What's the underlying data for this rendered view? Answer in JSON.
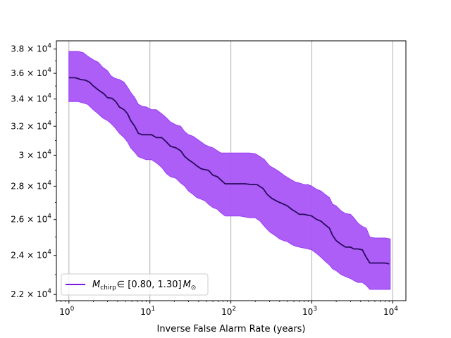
{
  "chart_data": {
    "type": "line",
    "title": "",
    "xlabel": "Inverse False Alarm Rate (years)",
    "ylabel": "",
    "xscale": "log",
    "yscale": "log",
    "xlim": [
      0.7,
      14500
    ],
    "ylim": [
      21700,
      38700
    ],
    "grid": "vertical-major",
    "legend_position": "lower-left",
    "colors": {
      "line": "#2a0a5e",
      "band": "#a855f7",
      "band_edge": "#9b3ff5",
      "legend_line": "#7a1ae6",
      "grid": "#b0b0b0"
    },
    "x_ticks": [
      {
        "value": 1,
        "base": "10",
        "exp": "0"
      },
      {
        "value": 10,
        "base": "10",
        "exp": "1"
      },
      {
        "value": 100,
        "base": "10",
        "exp": "2"
      },
      {
        "value": 1000,
        "base": "10",
        "exp": "3"
      },
      {
        "value": 10000,
        "base": "10",
        "exp": "4"
      }
    ],
    "y_ticks": [
      {
        "value": 22000,
        "mant": "2.2 × 10",
        "exp": "4"
      },
      {
        "value": 24000,
        "mant": "2.4 × 10",
        "exp": "4"
      },
      {
        "value": 26000,
        "mant": "2.6 × 10",
        "exp": "4"
      },
      {
        "value": 28000,
        "mant": "2.8 × 10",
        "exp": "4"
      },
      {
        "value": 30000,
        "mant": "3 × 10",
        "exp": "4"
      },
      {
        "value": 32000,
        "mant": "3.2 × 10",
        "exp": "4"
      },
      {
        "value": 34000,
        "mant": "3.4 × 10",
        "exp": "4"
      },
      {
        "value": 36000,
        "mant": "3.6 × 10",
        "exp": "4"
      },
      {
        "value": 38000,
        "mant": "3.8 × 10",
        "exp": "4"
      }
    ],
    "series": [
      {
        "name": "M_chirp ∈ [0.80, 1.30] M_⊙",
        "legend": {
          "main": "M",
          "sub": "chirp",
          "range": "∈ [0.80, 1.30]",
          "mass": "M",
          "mass_sub": "⊙"
        },
        "points": [
          [
            1.0,
            35650
          ],
          [
            1.2,
            35650
          ],
          [
            1.4,
            35500
          ],
          [
            1.6,
            35450
          ],
          [
            1.8,
            35300
          ],
          [
            2.0,
            35000
          ],
          [
            2.3,
            34700
          ],
          [
            2.7,
            34400
          ],
          [
            3.0,
            34100
          ],
          [
            3.4,
            34050
          ],
          [
            3.8,
            33800
          ],
          [
            4.2,
            33400
          ],
          [
            4.8,
            33200
          ],
          [
            5.3,
            32900
          ],
          [
            5.8,
            32400
          ],
          [
            6.5,
            32000
          ],
          [
            7.2,
            31500
          ],
          [
            8.0,
            31400
          ],
          [
            9.0,
            31400
          ],
          [
            10.5,
            31400
          ],
          [
            12,
            31200
          ],
          [
            14,
            31200
          ],
          [
            16,
            30900
          ],
          [
            18,
            30600
          ],
          [
            21,
            30500
          ],
          [
            24,
            30300
          ],
          [
            27,
            29900
          ],
          [
            30,
            29700
          ],
          [
            34,
            29500
          ],
          [
            38,
            29300
          ],
          [
            43,
            29100
          ],
          [
            48,
            29050
          ],
          [
            53,
            29000
          ],
          [
            60,
            28700
          ],
          [
            68,
            28600
          ],
          [
            75,
            28400
          ],
          [
            85,
            28150
          ],
          [
            100,
            28150
          ],
          [
            120,
            28150
          ],
          [
            150,
            28150
          ],
          [
            180,
            28100
          ],
          [
            210,
            28100
          ],
          [
            250,
            27850
          ],
          [
            280,
            27500
          ],
          [
            320,
            27250
          ],
          [
            380,
            27050
          ],
          [
            450,
            26900
          ],
          [
            500,
            26800
          ],
          [
            560,
            26600
          ],
          [
            630,
            26450
          ],
          [
            700,
            26300
          ],
          [
            800,
            26300
          ],
          [
            900,
            26250
          ],
          [
            1000,
            26200
          ],
          [
            1150,
            26000
          ],
          [
            1300,
            25900
          ],
          [
            1450,
            25700
          ],
          [
            1650,
            25500
          ],
          [
            1800,
            25100
          ],
          [
            2000,
            24800
          ],
          [
            2300,
            24600
          ],
          [
            2600,
            24450
          ],
          [
            3000,
            24450
          ],
          [
            3300,
            24350
          ],
          [
            3700,
            24350
          ],
          [
            4200,
            24300
          ],
          [
            4700,
            23900
          ],
          [
            5200,
            23600
          ],
          [
            6000,
            23600
          ],
          [
            7000,
            23600
          ],
          [
            8000,
            23600
          ],
          [
            9000,
            23550
          ]
        ],
        "band_upper": [
          [
            1.0,
            37800
          ],
          [
            1.3,
            37800
          ],
          [
            1.5,
            37700
          ],
          [
            1.7,
            37400
          ],
          [
            2.0,
            37100
          ],
          [
            2.3,
            36900
          ],
          [
            2.6,
            36500
          ],
          [
            3.0,
            36200
          ],
          [
            3.3,
            35800
          ],
          [
            3.7,
            35600
          ],
          [
            4.2,
            35500
          ],
          [
            4.8,
            35300
          ],
          [
            5.3,
            34900
          ],
          [
            5.8,
            34500
          ],
          [
            6.5,
            34100
          ],
          [
            7.2,
            33600
          ],
          [
            8.0,
            33450
          ],
          [
            9.0,
            33400
          ],
          [
            10.5,
            33200
          ],
          [
            12,
            33200
          ],
          [
            14,
            32900
          ],
          [
            16,
            32600
          ],
          [
            18,
            32300
          ],
          [
            21,
            32100
          ],
          [
            24,
            32000
          ],
          [
            27,
            31600
          ],
          [
            30,
            31400
          ],
          [
            34,
            31300
          ],
          [
            38,
            31100
          ],
          [
            43,
            30900
          ],
          [
            48,
            30700
          ],
          [
            53,
            30600
          ],
          [
            60,
            30500
          ],
          [
            68,
            30300
          ],
          [
            75,
            30150
          ],
          [
            85,
            30150
          ],
          [
            100,
            30150
          ],
          [
            130,
            30150
          ],
          [
            170,
            30150
          ],
          [
            200,
            30100
          ],
          [
            230,
            29900
          ],
          [
            260,
            29700
          ],
          [
            300,
            29300
          ],
          [
            350,
            29100
          ],
          [
            400,
            28900
          ],
          [
            450,
            28700
          ],
          [
            500,
            28550
          ],
          [
            560,
            28400
          ],
          [
            630,
            28250
          ],
          [
            700,
            28200
          ],
          [
            800,
            28100
          ],
          [
            900,
            28100
          ],
          [
            1000,
            28000
          ],
          [
            1150,
            27800
          ],
          [
            1300,
            27700
          ],
          [
            1450,
            27500
          ],
          [
            1650,
            27300
          ],
          [
            1800,
            26900
          ],
          [
            2000,
            26800
          ],
          [
            2300,
            26500
          ],
          [
            2600,
            26350
          ],
          [
            3000,
            26300
          ],
          [
            3300,
            26100
          ],
          [
            3700,
            25800
          ],
          [
            4200,
            25600
          ],
          [
            4700,
            25500
          ],
          [
            5200,
            25000
          ],
          [
            6000,
            24950
          ],
          [
            7000,
            24950
          ],
          [
            8000,
            24950
          ],
          [
            9300,
            24900
          ]
        ],
        "band_lower": [
          [
            1.0,
            33800
          ],
          [
            1.3,
            33800
          ],
          [
            1.5,
            33700
          ],
          [
            1.7,
            33600
          ],
          [
            2.0,
            33200
          ],
          [
            2.3,
            32900
          ],
          [
            2.6,
            32600
          ],
          [
            3.0,
            32400
          ],
          [
            3.3,
            32200
          ],
          [
            3.7,
            31900
          ],
          [
            4.2,
            31500
          ],
          [
            4.8,
            31200
          ],
          [
            5.3,
            30900
          ],
          [
            5.8,
            30500
          ],
          [
            6.5,
            30200
          ],
          [
            7.2,
            29900
          ],
          [
            8.0,
            29800
          ],
          [
            9.0,
            29700
          ],
          [
            10.5,
            29700
          ],
          [
            12,
            29500
          ],
          [
            14,
            29200
          ],
          [
            16,
            28800
          ],
          [
            18,
            28600
          ],
          [
            21,
            28500
          ],
          [
            24,
            28200
          ],
          [
            27,
            28000
          ],
          [
            30,
            27700
          ],
          [
            34,
            27500
          ],
          [
            38,
            27300
          ],
          [
            43,
            27200
          ],
          [
            48,
            27100
          ],
          [
            53,
            26900
          ],
          [
            60,
            26700
          ],
          [
            68,
            26600
          ],
          [
            75,
            26400
          ],
          [
            85,
            26200
          ],
          [
            100,
            26200
          ],
          [
            130,
            26200
          ],
          [
            170,
            26100
          ],
          [
            200,
            26100
          ],
          [
            230,
            25900
          ],
          [
            260,
            25600
          ],
          [
            300,
            25300
          ],
          [
            350,
            25100
          ],
          [
            400,
            24900
          ],
          [
            450,
            24800
          ],
          [
            500,
            24750
          ],
          [
            560,
            24600
          ],
          [
            630,
            24500
          ],
          [
            700,
            24450
          ],
          [
            800,
            24400
          ],
          [
            900,
            24350
          ],
          [
            1000,
            24300
          ],
          [
            1150,
            24100
          ],
          [
            1300,
            23900
          ],
          [
            1450,
            23700
          ],
          [
            1650,
            23500
          ],
          [
            1800,
            23300
          ],
          [
            2000,
            23200
          ],
          [
            2300,
            23000
          ],
          [
            2600,
            22900
          ],
          [
            3000,
            22800
          ],
          [
            3300,
            22700
          ],
          [
            3700,
            22600
          ],
          [
            4200,
            22600
          ],
          [
            4700,
            22450
          ],
          [
            5200,
            22250
          ],
          [
            6000,
            22250
          ],
          [
            7000,
            22250
          ],
          [
            8000,
            22250
          ],
          [
            9300,
            22250
          ]
        ]
      }
    ]
  }
}
